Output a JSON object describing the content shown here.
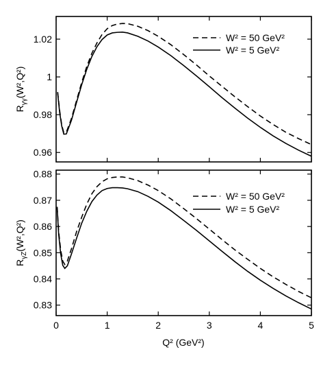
{
  "chart_data": [
    {
      "type": "line",
      "ylabel_main": "R",
      "ylabel_sub": "γγ",
      "ylabel_tail": "(W²,Q²)",
      "xlim": [
        0,
        5
      ],
      "ylim": [
        0.955,
        1.032
      ],
      "yticks": [
        0.96,
        0.98,
        1.0,
        1.02
      ],
      "ytick_labels": [
        "0.96",
        "0.98",
        "1",
        "1.02"
      ],
      "grid": false,
      "legend_position": "top-right",
      "series": [
        {
          "name": "W² = 50 GeV²",
          "style": "dashed",
          "points": [
            [
              0.03,
              0.992
            ],
            [
              0.07,
              0.982
            ],
            [
              0.11,
              0.9745
            ],
            [
              0.15,
              0.9705
            ],
            [
              0.2,
              0.9707
            ],
            [
              0.3,
              0.978
            ],
            [
              0.4,
              0.9875
            ],
            [
              0.5,
              0.997
            ],
            [
              0.6,
              1.0055
            ],
            [
              0.7,
              1.0125
            ],
            [
              0.8,
              1.018
            ],
            [
              0.9,
              1.0225
            ],
            [
              1.0,
              1.0255
            ],
            [
              1.1,
              1.0272
            ],
            [
              1.2,
              1.028
            ],
            [
              1.3,
              1.0283
            ],
            [
              1.4,
              1.0282
            ],
            [
              1.6,
              1.0268
            ],
            [
              1.8,
              1.0245
            ],
            [
              2.0,
              1.0215
            ],
            [
              2.25,
              1.017
            ],
            [
              2.5,
              1.0118
            ],
            [
              2.75,
              1.0063
            ],
            [
              3.0,
              1.0005
            ],
            [
              3.25,
              0.995
            ],
            [
              3.5,
              0.9895
            ],
            [
              3.75,
              0.9843
            ],
            [
              4.0,
              0.9793
            ],
            [
              4.25,
              0.9748
            ],
            [
              4.5,
              0.9707
            ],
            [
              4.75,
              0.9673
            ],
            [
              5.0,
              0.9642
            ]
          ]
        },
        {
          "name": "W² = 5 GeV²",
          "style": "solid",
          "points": [
            [
              0.03,
              0.9915
            ],
            [
              0.07,
              0.981
            ],
            [
              0.11,
              0.974
            ],
            [
              0.15,
              0.9697
            ],
            [
              0.2,
              0.9698
            ],
            [
              0.3,
              0.977
            ],
            [
              0.4,
              0.9865
            ],
            [
              0.5,
              0.9958
            ],
            [
              0.6,
              1.004
            ],
            [
              0.7,
              1.0108
            ],
            [
              0.8,
              1.016
            ],
            [
              0.9,
              1.0198
            ],
            [
              1.0,
              1.0222
            ],
            [
              1.1,
              1.0233
            ],
            [
              1.2,
              1.0236
            ],
            [
              1.3,
              1.0237
            ],
            [
              1.4,
              1.0233
            ],
            [
              1.6,
              1.0215
            ],
            [
              1.8,
              1.019
            ],
            [
              2.0,
              1.0158
            ],
            [
              2.25,
              1.0112
            ],
            [
              2.5,
              1.006
            ],
            [
              2.75,
              1.0005
            ],
            [
              3.0,
              0.9948
            ],
            [
              3.25,
              0.989
            ],
            [
              3.5,
              0.9835
            ],
            [
              3.75,
              0.9782
            ],
            [
              4.0,
              0.9733
            ],
            [
              4.25,
              0.9688
            ],
            [
              4.5,
              0.9648
            ],
            [
              4.75,
              0.9612
            ],
            [
              5.0,
              0.958
            ]
          ]
        }
      ]
    },
    {
      "type": "line",
      "ylabel_main": "R",
      "ylabel_sub": "γZ",
      "ylabel_tail": "(W²,Q²)",
      "xlabel": "Q² (GeV²)",
      "xlim": [
        0,
        5
      ],
      "xticks": [
        0,
        1,
        2,
        3,
        4,
        5
      ],
      "xtick_labels": [
        "0",
        "1",
        "2",
        "3",
        "4",
        "5"
      ],
      "ylim": [
        0.826,
        0.8815
      ],
      "yticks": [
        0.83,
        0.84,
        0.85,
        0.86,
        0.87,
        0.88
      ],
      "ytick_labels": [
        "0.83",
        "0.84",
        "0.85",
        "0.86",
        "0.87",
        "0.88"
      ],
      "grid": false,
      "legend_position": "top-right",
      "series": [
        {
          "name": "W² = 50 GeV²",
          "style": "dashed",
          "points": [
            [
              0.02,
              0.8675
            ],
            [
              0.05,
              0.858
            ],
            [
              0.09,
              0.851
            ],
            [
              0.13,
              0.8468
            ],
            [
              0.17,
              0.8455
            ],
            [
              0.22,
              0.8468
            ],
            [
              0.3,
              0.8515
            ],
            [
              0.4,
              0.858
            ],
            [
              0.5,
              0.8635
            ],
            [
              0.6,
              0.8685
            ],
            [
              0.7,
              0.8725
            ],
            [
              0.8,
              0.8752
            ],
            [
              0.9,
              0.8771
            ],
            [
              1.0,
              0.8782
            ],
            [
              1.1,
              0.8787
            ],
            [
              1.2,
              0.8789
            ],
            [
              1.3,
              0.8789
            ],
            [
              1.4,
              0.8786
            ],
            [
              1.6,
              0.8775
            ],
            [
              1.8,
              0.8758
            ],
            [
              2.0,
              0.8737
            ],
            [
              2.25,
              0.8705
            ],
            [
              2.5,
              0.8668
            ],
            [
              2.75,
              0.863
            ],
            [
              3.0,
              0.859
            ],
            [
              3.25,
              0.855
            ],
            [
              3.5,
              0.8511
            ],
            [
              3.75,
              0.8475
            ],
            [
              4.0,
              0.844
            ],
            [
              4.25,
              0.8408
            ],
            [
              4.5,
              0.8379
            ],
            [
              4.75,
              0.8352
            ],
            [
              5.0,
              0.8328
            ]
          ]
        },
        {
          "name": "W² = 5 GeV²",
          "style": "solid",
          "points": [
            [
              0.02,
              0.867
            ],
            [
              0.05,
              0.857
            ],
            [
              0.09,
              0.8495
            ],
            [
              0.13,
              0.8452
            ],
            [
              0.17,
              0.844
            ],
            [
              0.22,
              0.845
            ],
            [
              0.3,
              0.8495
            ],
            [
              0.4,
              0.8555
            ],
            [
              0.5,
              0.8612
            ],
            [
              0.6,
              0.8658
            ],
            [
              0.7,
              0.8695
            ],
            [
              0.8,
              0.872
            ],
            [
              0.9,
              0.8737
            ],
            [
              1.0,
              0.8745
            ],
            [
              1.1,
              0.8748
            ],
            [
              1.2,
              0.8748
            ],
            [
              1.3,
              0.8747
            ],
            [
              1.4,
              0.8744
            ],
            [
              1.6,
              0.8733
            ],
            [
              1.8,
              0.8715
            ],
            [
              2.0,
              0.8693
            ],
            [
              2.25,
              0.866
            ],
            [
              2.5,
              0.8623
            ],
            [
              2.75,
              0.8585
            ],
            [
              3.0,
              0.8545
            ],
            [
              3.25,
              0.8505
            ],
            [
              3.5,
              0.8466
            ],
            [
              3.75,
              0.8429
            ],
            [
              4.0,
              0.8395
            ],
            [
              4.25,
              0.8364
            ],
            [
              4.5,
              0.8335
            ],
            [
              4.75,
              0.8309
            ],
            [
              5.0,
              0.8285
            ]
          ]
        }
      ]
    }
  ]
}
